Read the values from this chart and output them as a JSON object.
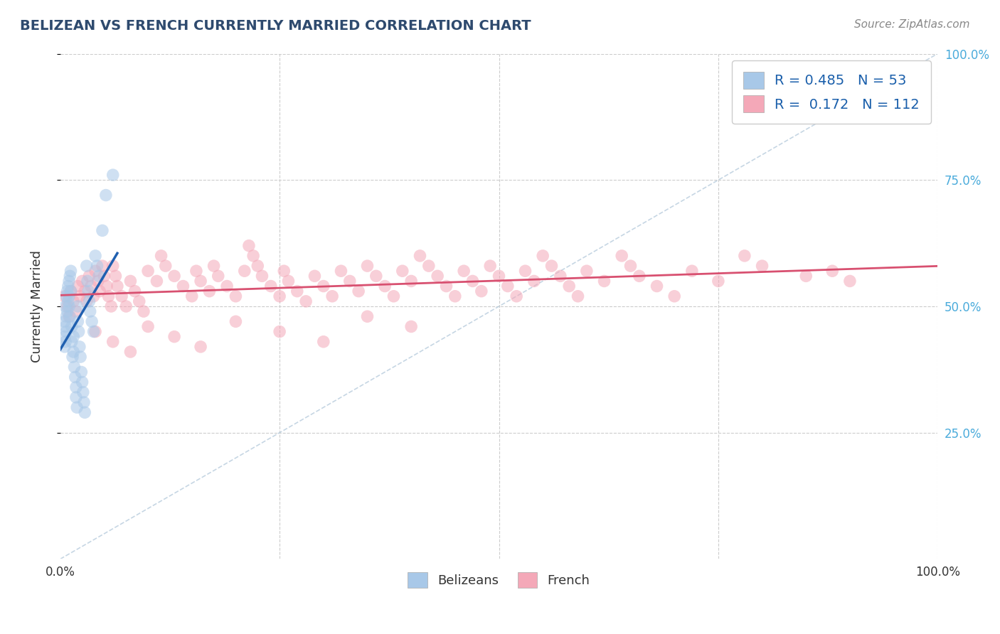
{
  "title": "BELIZEAN VS FRENCH CURRENTLY MARRIED CORRELATION CHART",
  "source_text": "Source: ZipAtlas.com",
  "ylabel": "Currently Married",
  "xlim": [
    0,
    1
  ],
  "ylim": [
    0,
    1
  ],
  "legend_label1": "Belizeans",
  "legend_label2": "French",
  "R1": 0.485,
  "N1": 53,
  "R2": 0.172,
  "N2": 112,
  "color_belizean": "#A8C8E8",
  "color_french": "#F4A8B8",
  "color_trend_belizean": "#2060B0",
  "color_trend_french": "#D85070",
  "color_diag": "#B8CCDD",
  "background_color": "#FFFFFF",
  "title_color": "#2E4A6E",
  "source_color": "#888888",
  "belizean_x": [
    0.005,
    0.005,
    0.005,
    0.006,
    0.006,
    0.006,
    0.007,
    0.007,
    0.007,
    0.008,
    0.008,
    0.009,
    0.009,
    0.01,
    0.01,
    0.01,
    0.011,
    0.011,
    0.012,
    0.012,
    0.013,
    0.013,
    0.014,
    0.015,
    0.015,
    0.016,
    0.017,
    0.018,
    0.018,
    0.019,
    0.02,
    0.02,
    0.021,
    0.022,
    0.023,
    0.024,
    0.025,
    0.026,
    0.027,
    0.028,
    0.03,
    0.031,
    0.032,
    0.033,
    0.034,
    0.036,
    0.038,
    0.04,
    0.042,
    0.044,
    0.048,
    0.052,
    0.06
  ],
  "belizean_y": [
    0.47,
    0.44,
    0.42,
    0.5,
    0.46,
    0.43,
    0.52,
    0.48,
    0.45,
    0.53,
    0.49,
    0.54,
    0.51,
    0.55,
    0.52,
    0.5,
    0.56,
    0.48,
    0.57,
    0.53,
    0.46,
    0.43,
    0.4,
    0.44,
    0.41,
    0.38,
    0.36,
    0.34,
    0.32,
    0.3,
    0.5,
    0.47,
    0.45,
    0.42,
    0.4,
    0.37,
    0.35,
    0.33,
    0.31,
    0.29,
    0.58,
    0.55,
    0.53,
    0.51,
    0.49,
    0.47,
    0.45,
    0.6,
    0.58,
    0.56,
    0.65,
    0.72,
    0.76
  ],
  "french_x": [
    0.005,
    0.008,
    0.01,
    0.012,
    0.015,
    0.018,
    0.02,
    0.022,
    0.025,
    0.028,
    0.03,
    0.033,
    0.035,
    0.038,
    0.04,
    0.043,
    0.045,
    0.048,
    0.05,
    0.053,
    0.055,
    0.058,
    0.06,
    0.063,
    0.065,
    0.07,
    0.075,
    0.08,
    0.085,
    0.09,
    0.095,
    0.1,
    0.11,
    0.115,
    0.12,
    0.13,
    0.14,
    0.15,
    0.155,
    0.16,
    0.17,
    0.175,
    0.18,
    0.19,
    0.2,
    0.21,
    0.215,
    0.22,
    0.225,
    0.23,
    0.24,
    0.25,
    0.255,
    0.26,
    0.27,
    0.28,
    0.29,
    0.3,
    0.31,
    0.32,
    0.33,
    0.34,
    0.35,
    0.36,
    0.37,
    0.38,
    0.39,
    0.4,
    0.41,
    0.42,
    0.43,
    0.44,
    0.45,
    0.46,
    0.47,
    0.48,
    0.49,
    0.5,
    0.51,
    0.52,
    0.53,
    0.54,
    0.55,
    0.56,
    0.57,
    0.58,
    0.59,
    0.6,
    0.62,
    0.64,
    0.65,
    0.66,
    0.68,
    0.7,
    0.72,
    0.75,
    0.78,
    0.8,
    0.85,
    0.88,
    0.9,
    0.04,
    0.06,
    0.08,
    0.1,
    0.13,
    0.16,
    0.2,
    0.25,
    0.3,
    0.35,
    0.4
  ],
  "french_y": [
    0.52,
    0.5,
    0.48,
    0.53,
    0.51,
    0.49,
    0.54,
    0.52,
    0.55,
    0.53,
    0.51,
    0.56,
    0.54,
    0.52,
    0.57,
    0.55,
    0.53,
    0.58,
    0.56,
    0.54,
    0.52,
    0.5,
    0.58,
    0.56,
    0.54,
    0.52,
    0.5,
    0.55,
    0.53,
    0.51,
    0.49,
    0.57,
    0.55,
    0.6,
    0.58,
    0.56,
    0.54,
    0.52,
    0.57,
    0.55,
    0.53,
    0.58,
    0.56,
    0.54,
    0.52,
    0.57,
    0.62,
    0.6,
    0.58,
    0.56,
    0.54,
    0.52,
    0.57,
    0.55,
    0.53,
    0.51,
    0.56,
    0.54,
    0.52,
    0.57,
    0.55,
    0.53,
    0.58,
    0.56,
    0.54,
    0.52,
    0.57,
    0.55,
    0.6,
    0.58,
    0.56,
    0.54,
    0.52,
    0.57,
    0.55,
    0.53,
    0.58,
    0.56,
    0.54,
    0.52,
    0.57,
    0.55,
    0.6,
    0.58,
    0.56,
    0.54,
    0.52,
    0.57,
    0.55,
    0.6,
    0.58,
    0.56,
    0.54,
    0.52,
    0.57,
    0.55,
    0.6,
    0.58,
    0.56,
    0.57,
    0.55,
    0.45,
    0.43,
    0.41,
    0.46,
    0.44,
    0.42,
    0.47,
    0.45,
    0.43,
    0.48,
    0.46
  ]
}
